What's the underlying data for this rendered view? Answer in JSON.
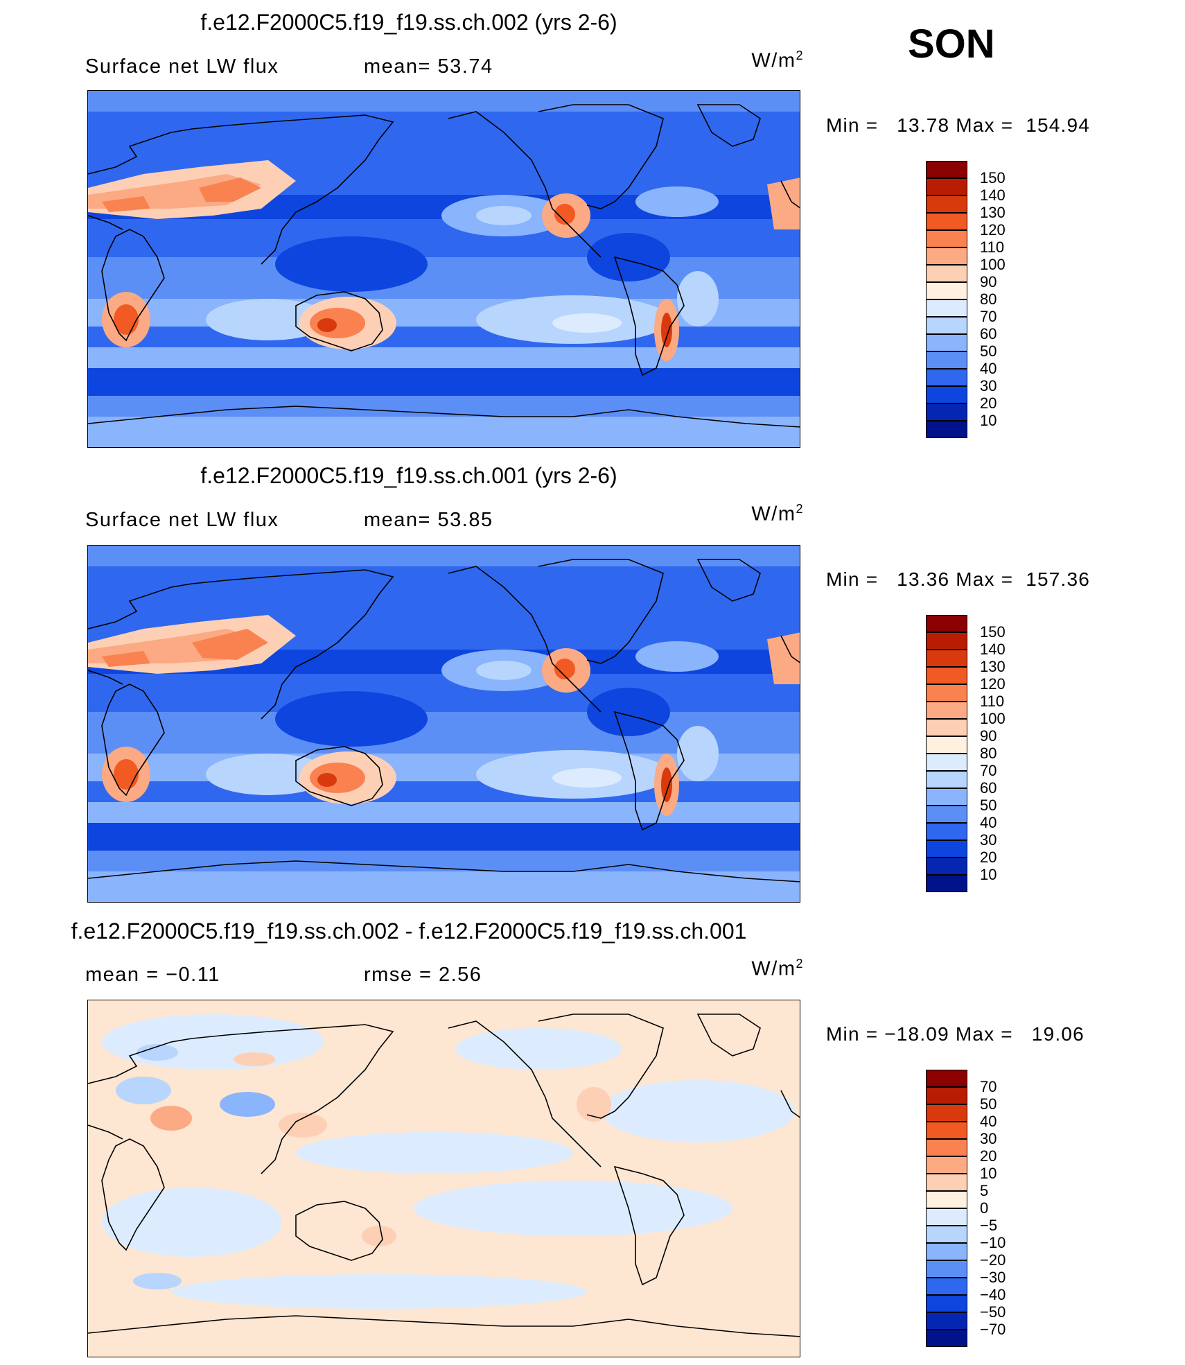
{
  "season": "SON",
  "panels": [
    {
      "title": "f.e12.F2000C5.f19_f19.ss.ch.002 (yrs 2-6)",
      "left_label": "Surface net LW flux",
      "center_label": "mean=   53.74",
      "units": "W/m",
      "units_exp": "2",
      "minmax": "Min =   13.78 Max =  154.94",
      "colorbar": {
        "labels": [
          "150",
          "140",
          "130",
          "120",
          "110",
          "100",
          "90",
          "80",
          "70",
          "60",
          "50",
          "40",
          "30",
          "20",
          "10"
        ],
        "colors": [
          "#8b0000",
          "#b81d04",
          "#d93a0d",
          "#f25a23",
          "#f98250",
          "#fbaa84",
          "#fdd0b5",
          "#fff0e0",
          "#dcecfe",
          "#b8d5fd",
          "#8ab4fb",
          "#5c8ff6",
          "#2f68ef",
          "#0d45de",
          "#0526b0",
          "#00138a"
        ]
      }
    },
    {
      "title": "f.e12.F2000C5.f19_f19.ss.ch.001 (yrs 2-6)",
      "left_label": "Surface net LW flux",
      "center_label": "mean=   53.85",
      "units": "W/m",
      "units_exp": "2",
      "minmax": "Min =   13.36 Max =  157.36",
      "colorbar": {
        "labels": [
          "150",
          "140",
          "130",
          "120",
          "110",
          "100",
          "90",
          "80",
          "70",
          "60",
          "50",
          "40",
          "30",
          "20",
          "10"
        ],
        "colors": [
          "#8b0000",
          "#b81d04",
          "#d93a0d",
          "#f25a23",
          "#f98250",
          "#fbaa84",
          "#fdd0b5",
          "#fff0e0",
          "#dcecfe",
          "#b8d5fd",
          "#8ab4fb",
          "#5c8ff6",
          "#2f68ef",
          "#0d45de",
          "#0526b0",
          "#00138a"
        ]
      }
    },
    {
      "title": "f.e12.F2000C5.f19_f19.ss.ch.002 - f.e12.F2000C5.f19_f19.ss.ch.001",
      "left_label": "mean =   −0.11",
      "center_label": "rmse =    2.56",
      "units": "W/m",
      "units_exp": "2",
      "minmax": "Min = −18.09 Max =   19.06",
      "colorbar": {
        "labels": [
          "70",
          "50",
          "40",
          "30",
          "20",
          "10",
          "5",
          "0",
          "−5",
          "−10",
          "−20",
          "−30",
          "−40",
          "−50",
          "−70"
        ],
        "colors": [
          "#8b0000",
          "#b81d04",
          "#d93a0d",
          "#f25a23",
          "#f98250",
          "#fbaa84",
          "#fdd0b5",
          "#fff0e0",
          "#dcecfe",
          "#b8d5fd",
          "#8ab4fb",
          "#5c8ff6",
          "#2f68ef",
          "#0d45de",
          "#0526b0",
          "#00138a"
        ]
      }
    }
  ]
}
